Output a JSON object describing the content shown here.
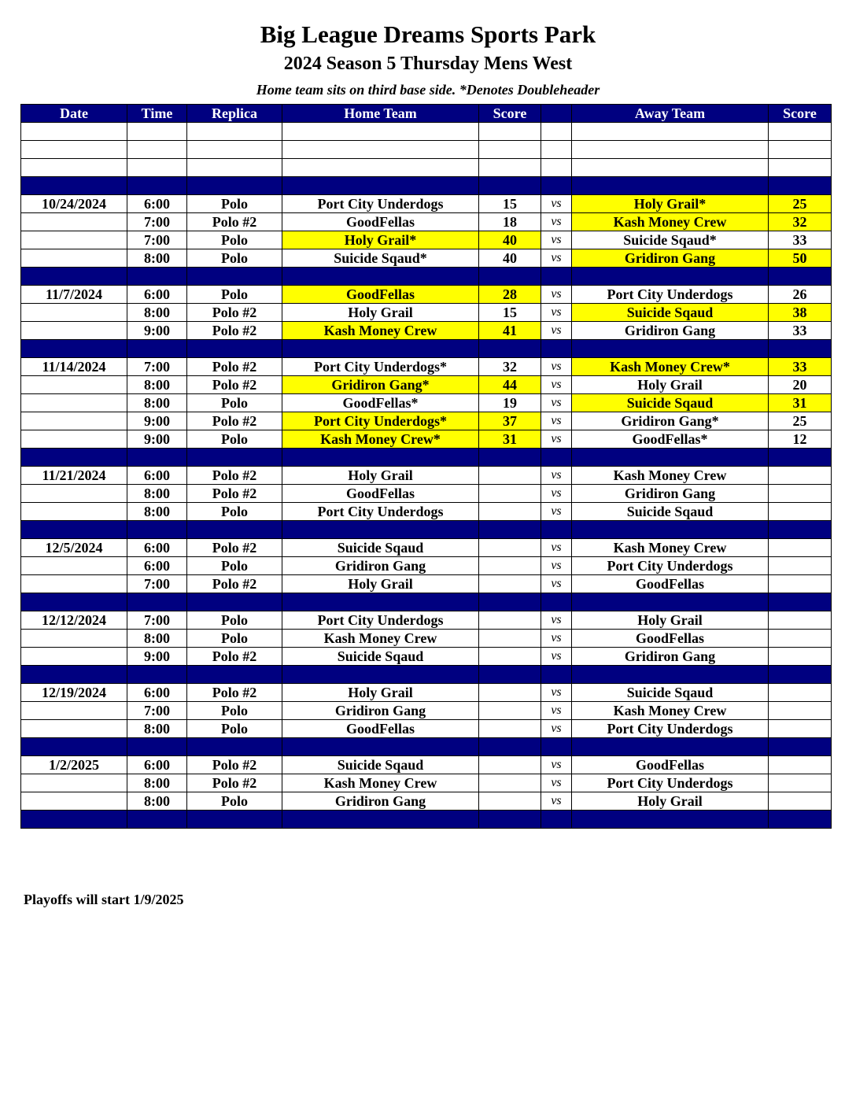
{
  "title": "Big League Dreams Sports Park",
  "subtitle": "2024 Season 5 Thursday Mens West",
  "note": "Home team sits on third base side.  *Denotes Doubleheader",
  "colors": {
    "header_bg": "#000080",
    "winner_highlight": "#ffff00"
  },
  "columns": [
    "Date",
    "Time",
    "Replica",
    "Home Team",
    "Score",
    "",
    "Away Team",
    "Score"
  ],
  "vs_label": "vs",
  "rows": [
    {
      "type": "blank"
    },
    {
      "type": "blank"
    },
    {
      "type": "blank"
    },
    {
      "type": "sep"
    },
    {
      "type": "game",
      "date": "10/24/2024",
      "time": "6:00",
      "replica": "Polo",
      "home": "Port City Underdogs",
      "home_score": "15",
      "away": "Holy Grail*",
      "away_score": "25",
      "winner": "away"
    },
    {
      "type": "game",
      "date": "",
      "time": "7:00",
      "replica": "Polo #2",
      "home": "GoodFellas",
      "home_score": "18",
      "away": "Kash Money Crew",
      "away_score": "32",
      "winner": "away"
    },
    {
      "type": "game",
      "date": "",
      "time": "7:00",
      "replica": "Polo",
      "home": "Holy Grail*",
      "home_score": "40",
      "away": "Suicide Sqaud*",
      "away_score": "33",
      "winner": "home"
    },
    {
      "type": "game",
      "date": "",
      "time": "8:00",
      "replica": "Polo",
      "home": "Suicide Sqaud*",
      "home_score": "40",
      "away": "Gridiron Gang",
      "away_score": "50",
      "winner": "away"
    },
    {
      "type": "sep"
    },
    {
      "type": "game",
      "date": "11/7/2024",
      "time": "6:00",
      "replica": "Polo",
      "home": "GoodFellas",
      "home_score": "28",
      "away": "Port City Underdogs",
      "away_score": "26",
      "winner": "home"
    },
    {
      "type": "game",
      "date": "",
      "time": "8:00",
      "replica": "Polo #2",
      "home": "Holy Grail",
      "home_score": "15",
      "away": "Suicide Sqaud",
      "away_score": "38",
      "winner": "away"
    },
    {
      "type": "game",
      "date": "",
      "time": "9:00",
      "replica": "Polo #2",
      "home": "Kash Money Crew",
      "home_score": "41",
      "away": "Gridiron Gang",
      "away_score": "33",
      "winner": "home"
    },
    {
      "type": "sep"
    },
    {
      "type": "game",
      "date": "11/14/2024",
      "time": "7:00",
      "replica": "Polo #2",
      "home": "Port City Underdogs*",
      "home_score": "32",
      "away": "Kash Money Crew*",
      "away_score": "33",
      "winner": "away"
    },
    {
      "type": "game",
      "date": "",
      "time": "8:00",
      "replica": "Polo #2",
      "home": "Gridiron Gang*",
      "home_score": "44",
      "away": "Holy Grail",
      "away_score": "20",
      "winner": "home"
    },
    {
      "type": "game",
      "date": "",
      "time": "8:00",
      "replica": "Polo",
      "home": "GoodFellas*",
      "home_score": "19",
      "away": "Suicide Sqaud",
      "away_score": "31",
      "winner": "away"
    },
    {
      "type": "game",
      "date": "",
      "time": "9:00",
      "replica": "Polo #2",
      "home": "Port City Underdogs*",
      "home_score": "37",
      "away": "Gridiron Gang*",
      "away_score": "25",
      "winner": "home"
    },
    {
      "type": "game",
      "date": "",
      "time": "9:00",
      "replica": "Polo",
      "home": "Kash Money Crew*",
      "home_score": "31",
      "away": "GoodFellas*",
      "away_score": "12",
      "winner": "home"
    },
    {
      "type": "sep"
    },
    {
      "type": "game",
      "date": "11/21/2024",
      "time": "6:00",
      "replica": "Polo #2",
      "home": "Holy Grail",
      "home_score": "",
      "away": "Kash Money Crew",
      "away_score": "",
      "winner": ""
    },
    {
      "type": "game",
      "date": "",
      "time": "8:00",
      "replica": "Polo #2",
      "home": "GoodFellas",
      "home_score": "",
      "away": "Gridiron Gang",
      "away_score": "",
      "winner": ""
    },
    {
      "type": "game",
      "date": "",
      "time": "8:00",
      "replica": "Polo",
      "home": "Port City Underdogs",
      "home_score": "",
      "away": "Suicide Sqaud",
      "away_score": "",
      "winner": ""
    },
    {
      "type": "sep"
    },
    {
      "type": "game",
      "date": "12/5/2024",
      "time": "6:00",
      "replica": "Polo #2",
      "home": "Suicide Sqaud",
      "home_score": "",
      "away": "Kash Money Crew",
      "away_score": "",
      "winner": ""
    },
    {
      "type": "game",
      "date": "",
      "time": "6:00",
      "replica": "Polo",
      "home": "Gridiron Gang",
      "home_score": "",
      "away": "Port City Underdogs",
      "away_score": "",
      "winner": ""
    },
    {
      "type": "game",
      "date": "",
      "time": "7:00",
      "replica": "Polo #2",
      "home": "Holy Grail",
      "home_score": "",
      "away": "GoodFellas",
      "away_score": "",
      "winner": ""
    },
    {
      "type": "sep"
    },
    {
      "type": "game",
      "date": "12/12/2024",
      "time": "7:00",
      "replica": "Polo",
      "home": "Port City Underdogs",
      "home_score": "",
      "away": "Holy Grail",
      "away_score": "",
      "winner": ""
    },
    {
      "type": "game",
      "date": "",
      "time": "8:00",
      "replica": "Polo",
      "home": "Kash Money Crew",
      "home_score": "",
      "away": "GoodFellas",
      "away_score": "",
      "winner": ""
    },
    {
      "type": "game",
      "date": "",
      "time": "9:00",
      "replica": "Polo #2",
      "home": "Suicide Sqaud",
      "home_score": "",
      "away": "Gridiron Gang",
      "away_score": "",
      "winner": ""
    },
    {
      "type": "sep"
    },
    {
      "type": "game",
      "date": "12/19/2024",
      "time": "6:00",
      "replica": "Polo #2",
      "home": "Holy Grail",
      "home_score": "",
      "away": "Suicide Sqaud",
      "away_score": "",
      "winner": ""
    },
    {
      "type": "game",
      "date": "",
      "time": "7:00",
      "replica": "Polo",
      "home": "Gridiron Gang",
      "home_score": "",
      "away": "Kash Money Crew",
      "away_score": "",
      "winner": ""
    },
    {
      "type": "game",
      "date": "",
      "time": "8:00",
      "replica": "Polo",
      "home": "GoodFellas",
      "home_score": "",
      "away": "Port City Underdogs",
      "away_score": "",
      "winner": ""
    },
    {
      "type": "sep"
    },
    {
      "type": "game",
      "date": "1/2/2025",
      "time": "6:00",
      "replica": "Polo #2",
      "home": "Suicide Sqaud",
      "home_score": "",
      "away": "GoodFellas",
      "away_score": "",
      "winner": ""
    },
    {
      "type": "game",
      "date": "",
      "time": "8:00",
      "replica": "Polo #2",
      "home": "Kash Money Crew",
      "home_score": "",
      "away": "Port City Underdogs",
      "away_score": "",
      "winner": ""
    },
    {
      "type": "game",
      "date": "",
      "time": "8:00",
      "replica": "Polo",
      "home": "Gridiron Gang",
      "home_score": "",
      "away": "Holy Grail",
      "away_score": "",
      "winner": ""
    },
    {
      "type": "sep"
    }
  ],
  "footer": "Playoffs will start 1/9/2025"
}
